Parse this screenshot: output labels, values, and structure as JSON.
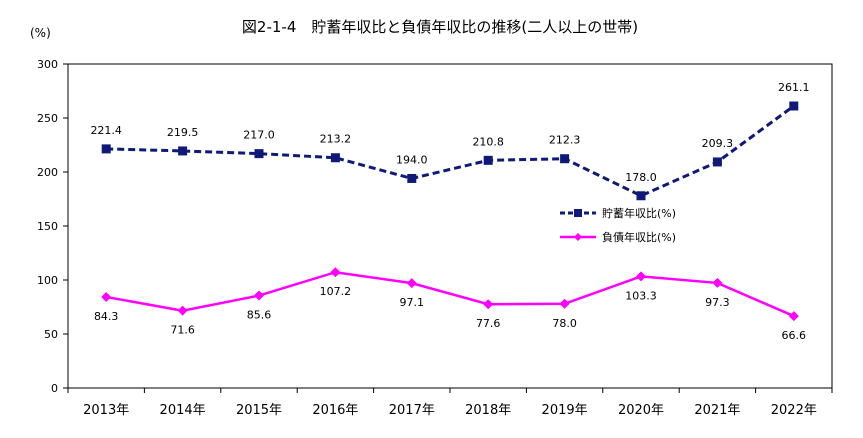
{
  "chart_data": {
    "type": "line",
    "title": "図2-1-4　貯蓄年収比と負債年収比の推移(二人以上の世帯)",
    "ylabel": "(%)",
    "ylim": [
      0,
      300
    ],
    "yticks": [
      0,
      50,
      100,
      150,
      200,
      250,
      300
    ],
    "categories": [
      "2013年",
      "2014年",
      "2015年",
      "2016年",
      "2017年",
      "2018年",
      "2019年",
      "2020年",
      "2021年",
      "2022年"
    ],
    "grid": false,
    "legend": "center-right",
    "series": [
      {
        "name": "貯蓄年収比(%)",
        "values": [
          221.4,
          219.5,
          217.0,
          213.2,
          194.0,
          210.8,
          212.3,
          178.0,
          209.3,
          261.1
        ],
        "labels": [
          "221.4",
          "219.5",
          "217.0",
          "213.2",
          "194.0",
          "210.8",
          "212.3",
          "178.0",
          "209.3",
          "261.1"
        ],
        "color": "#0f1a78",
        "style": "dashed",
        "marker": "square",
        "label_position": "above"
      },
      {
        "name": "負債年収比(%)",
        "values": [
          84.3,
          71.6,
          85.6,
          107.2,
          97.1,
          77.6,
          78.0,
          103.3,
          97.3,
          66.6
        ],
        "labels": [
          "84.3",
          "71.6",
          "85.6",
          "107.2",
          "97.1",
          "77.6",
          "78.0",
          "103.3",
          "97.3",
          "66.6"
        ],
        "color": "#ff00ff",
        "style": "solid",
        "marker": "diamond",
        "label_position": "below"
      }
    ]
  }
}
